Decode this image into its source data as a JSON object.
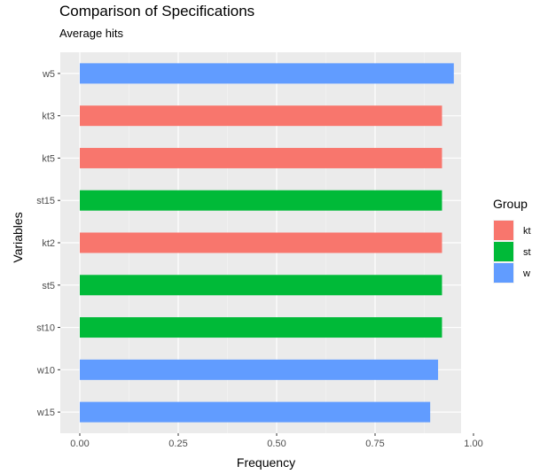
{
  "chart_data": {
    "type": "bar",
    "orientation": "horizontal",
    "title": "Comparison of Specifications",
    "subtitle": "Average hits",
    "xlabel": "Frequency",
    "ylabel": "Variables",
    "xlim": [
      -0.025,
      1.0
    ],
    "x_ticks": [
      0.0,
      0.25,
      0.5,
      0.75,
      1.0
    ],
    "x_tick_labels": [
      "0.00",
      "0.25",
      "0.50",
      "0.75",
      "1.00"
    ],
    "grid": true,
    "legend": {
      "title": "Group",
      "placement": "right",
      "entries": [
        {
          "label": "kt",
          "color": "#F8766D"
        },
        {
          "label": "st",
          "color": "#00BA38"
        },
        {
          "label": "w",
          "color": "#619CFF"
        }
      ]
    },
    "bars": [
      {
        "category": "w5",
        "group": "w",
        "value": 0.95
      },
      {
        "category": "kt3",
        "group": "kt",
        "value": 0.92
      },
      {
        "category": "kt5",
        "group": "kt",
        "value": 0.92
      },
      {
        "category": "st15",
        "group": "st",
        "value": 0.92
      },
      {
        "category": "kt2",
        "group": "kt",
        "value": 0.92
      },
      {
        "category": "st5",
        "group": "st",
        "value": 0.92
      },
      {
        "category": "st10",
        "group": "st",
        "value": 0.92
      },
      {
        "category": "w10",
        "group": "w",
        "value": 0.91
      },
      {
        "category": "w15",
        "group": "w",
        "value": 0.89
      }
    ]
  }
}
